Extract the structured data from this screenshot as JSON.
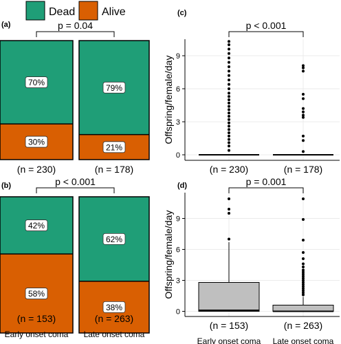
{
  "colors": {
    "dead": "#1f9e77",
    "alive": "#d95f02",
    "box_fill": "#bfbfbf",
    "grid": "#ebebeb",
    "ink": "#000000"
  },
  "legend": {
    "items": [
      {
        "label": "Dead",
        "color": "#1f9e77"
      },
      {
        "label": "Alive",
        "color": "#d95f02"
      }
    ]
  },
  "chart_data": [
    {
      "panel": "(a)",
      "type": "bar",
      "stacked": true,
      "percent": true,
      "categories": [
        "(n = 230)",
        "(n = 178)"
      ],
      "series": [
        {
          "name": "Dead",
          "values": [
            70,
            79
          ],
          "labels": [
            "70%",
            "79%"
          ]
        },
        {
          "name": "Alive",
          "values": [
            30,
            21
          ],
          "labels": [
            "30%",
            "21%"
          ]
        }
      ],
      "comparison": "p = 0.04"
    },
    {
      "panel": "(b)",
      "type": "bar",
      "stacked": true,
      "percent": true,
      "categories": [
        "(n = 153)",
        "(n = 263)"
      ],
      "group_labels": [
        "Early onset coma",
        "Late onset coma"
      ],
      "series": [
        {
          "name": "Dead",
          "values": [
            42,
            62
          ],
          "labels": [
            "42%",
            "62%"
          ]
        },
        {
          "name": "Alive",
          "values": [
            58,
            38
          ],
          "labels": [
            "58%",
            "38%"
          ]
        }
      ],
      "comparison": "p < 0.001"
    },
    {
      "panel": "(c)",
      "type": "box",
      "ylabel": "Offspring/female/day",
      "yticks": [
        0,
        3,
        6,
        9
      ],
      "ylim": [
        -0.5,
        10.5
      ],
      "grid": true,
      "categories": [
        "(n = 230)",
        "(n = 178)"
      ],
      "boxes": [
        {
          "q1": 0,
          "median": 0,
          "q3": 0,
          "whisker_low": 0,
          "whisker_high": 0,
          "outliers": [
            10.3,
            10.0,
            9.6,
            9.2,
            8.8,
            8.4,
            8.0,
            7.6,
            7.2,
            6.8,
            6.4,
            6.0,
            5.6,
            5.3,
            5.0,
            4.7,
            4.4,
            4.1,
            3.8,
            3.5,
            3.2,
            2.9,
            2.6,
            2.3,
            2.0,
            1.7,
            1.4,
            1.1,
            0.8,
            0.4
          ]
        },
        {
          "q1": 0,
          "median": 0,
          "q3": 0,
          "whisker_low": 0,
          "whisker_high": 0,
          "outliers": [
            8.1,
            7.9,
            7.6,
            5.5,
            5.1,
            4.2,
            3.9,
            3.6,
            3.4,
            1.7,
            1.3,
            0.3
          ]
        }
      ],
      "comparison": "p < 0.001"
    },
    {
      "panel": "(d)",
      "type": "box",
      "ylabel": "Offspring/female/day",
      "yticks": [
        0,
        3,
        6,
        9
      ],
      "ylim": [
        -0.5,
        11.5
      ],
      "grid": true,
      "categories": [
        "(n = 153)",
        "(n = 263)"
      ],
      "group_labels": [
        "Early onset coma",
        "Late onset coma"
      ],
      "boxes": [
        {
          "q1": 0,
          "median": 0.1,
          "q3": 2.8,
          "whisker_low": 0,
          "whisker_high": 6.7,
          "outliers": [
            10.9,
            9.9,
            9.5,
            7.0
          ]
        },
        {
          "q1": 0,
          "median": 0,
          "q3": 0.6,
          "whisker_low": 0,
          "whisker_high": 1.4,
          "outliers": [
            10.9,
            8.9,
            6.9,
            5.7,
            5.1,
            4.6,
            4.3,
            4.0,
            3.8,
            3.6,
            3.4,
            3.2,
            3.0,
            2.8,
            2.6,
            2.4,
            2.2,
            2.0,
            1.8,
            1.6
          ]
        }
      ],
      "comparison": "p = 0.001"
    }
  ]
}
